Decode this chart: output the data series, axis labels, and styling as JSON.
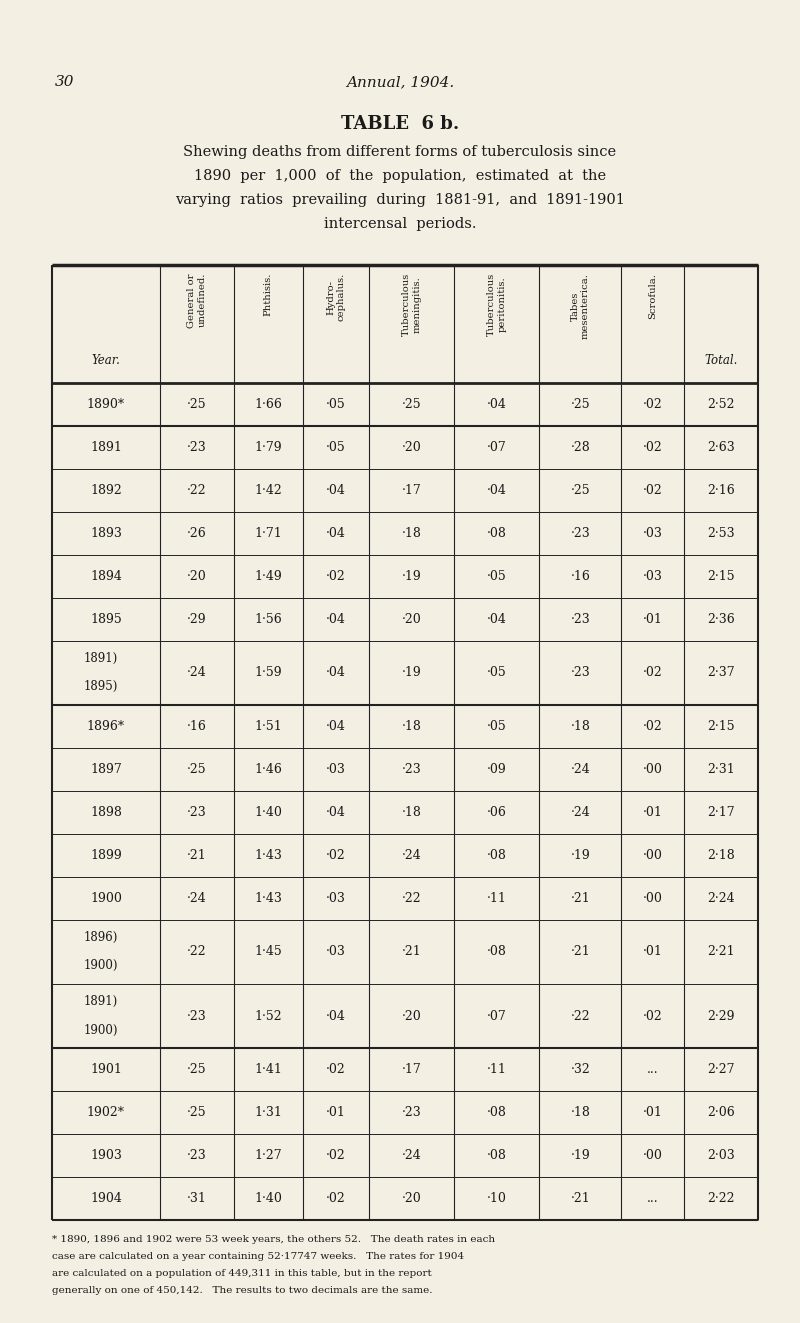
{
  "page_number": "30",
  "header_italic": "Annual, 1904.",
  "title_bold": "TABLE  6 b.",
  "subtitle_lines": [
    "Shewing deaths from different forms of tuberculosis since",
    "1890  per  1,000  of  the  population,  estimated  at  the",
    "varying  ratios  prevailing  during  1881-91,  and  1891-1901",
    "intercensal  periods."
  ],
  "col_headers": [
    "Year.",
    "General or\nundefined.",
    "Phthisis.",
    "Hydro-\ncephalus.",
    "Tuberculous\nmeningitis.",
    "Tuberculous\nperitonitis.",
    "Tabes\nmesenterica.",
    "Scrofula.",
    "Total."
  ],
  "rows": [
    {
      "year": "1890*",
      "vals": [
        "·25",
        "1·66",
        "·05",
        "·25",
        "·04",
        "·25",
        "·02",
        "2·52"
      ],
      "combined": false,
      "year2": ""
    },
    {
      "year": "1891",
      "vals": [
        "·23",
        "1·79",
        "·05",
        "·20",
        "·07",
        "·28",
        "·02",
        "2·63"
      ],
      "combined": false,
      "year2": ""
    },
    {
      "year": "1892",
      "vals": [
        "·22",
        "1·42",
        "·04",
        "·17",
        "·04",
        "·25",
        "·02",
        "2·16"
      ],
      "combined": false,
      "year2": ""
    },
    {
      "year": "1893",
      "vals": [
        "·26",
        "1·71",
        "·04",
        "·18",
        "·08",
        "·23",
        "·03",
        "2·53"
      ],
      "combined": false,
      "year2": ""
    },
    {
      "year": "1894",
      "vals": [
        "·20",
        "1·49",
        "·02",
        "·19",
        "·05",
        "·16",
        "·03",
        "2·15"
      ],
      "combined": false,
      "year2": ""
    },
    {
      "year": "1895",
      "vals": [
        "·29",
        "1·56",
        "·04",
        "·20",
        "·04",
        "·23",
        "·01",
        "2·36"
      ],
      "combined": false,
      "year2": ""
    },
    {
      "year": "1891)",
      "vals": [
        "·24",
        "1·59",
        "·04",
        "·19",
        "·05",
        "·23",
        "·02",
        "2·37"
      ],
      "combined": true,
      "year2": "1895)"
    },
    {
      "year": "1896*",
      "vals": [
        "·16",
        "1·51",
        "·04",
        "·18",
        "·05",
        "·18",
        "·02",
        "2·15"
      ],
      "combined": false,
      "year2": ""
    },
    {
      "year": "1897",
      "vals": [
        "·25",
        "1·46",
        "·03",
        "·23",
        "·09",
        "·24",
        "·00",
        "2·31"
      ],
      "combined": false,
      "year2": ""
    },
    {
      "year": "1898",
      "vals": [
        "·23",
        "1·40",
        "·04",
        "·18",
        "·06",
        "·24",
        "·01",
        "2·17"
      ],
      "combined": false,
      "year2": ""
    },
    {
      "year": "1899",
      "vals": [
        "·21",
        "1·43",
        "·02",
        "·24",
        "·08",
        "·19",
        "·00",
        "2·18"
      ],
      "combined": false,
      "year2": ""
    },
    {
      "year": "1900",
      "vals": [
        "·24",
        "1·43",
        "·03",
        "·22",
        "·11",
        "·21",
        "·00",
        "2·24"
      ],
      "combined": false,
      "year2": ""
    },
    {
      "year": "1896)",
      "vals": [
        "·22",
        "1·45",
        "·03",
        "·21",
        "·08",
        "·21",
        "·01",
        "2·21"
      ],
      "combined": true,
      "year2": "1900)"
    },
    {
      "year": "1891)",
      "vals": [
        "·23",
        "1·52",
        "·04",
        "·20",
        "·07",
        "·22",
        "·02",
        "2·29"
      ],
      "combined": true,
      "year2": "1900)"
    },
    {
      "year": "1901",
      "vals": [
        "·25",
        "1·41",
        "·02",
        "·17",
        "·11",
        "·32",
        "...",
        "2·27"
      ],
      "combined": false,
      "year2": ""
    },
    {
      "year": "1902*",
      "vals": [
        "·25",
        "1·31",
        "·01",
        "·23",
        "·08",
        "·18",
        "·01",
        "2·06"
      ],
      "combined": false,
      "year2": ""
    },
    {
      "year": "1903",
      "vals": [
        "·23",
        "1·27",
        "·02",
        "·24",
        "·08",
        "·19",
        "·00",
        "2·03"
      ],
      "combined": false,
      "year2": ""
    },
    {
      "year": "1904",
      "vals": [
        "·31",
        "1·40",
        "·02",
        "·20",
        "·10",
        "·21",
        "...",
        "2·22"
      ],
      "combined": false,
      "year2": ""
    }
  ],
  "thick_after": [
    0,
    6,
    13
  ],
  "footnote_lines": [
    "* 1890, 1896 and 1902 were 53 week years, the others 52.   The death rates in each",
    "case are calculated on a year containing 52·17747 weeks.   The rates for 1904",
    "are calculated on a population of 449,311 in this table, but in the report",
    "generally on one of 450,142.   The results to two decimals are the same."
  ],
  "bg_color": "#f4efe3",
  "text_color": "#1a1a1a",
  "border_color": "#222222",
  "col_proportions": [
    0.142,
    0.098,
    0.09,
    0.088,
    0.112,
    0.112,
    0.108,
    0.082,
    0.098
  ]
}
